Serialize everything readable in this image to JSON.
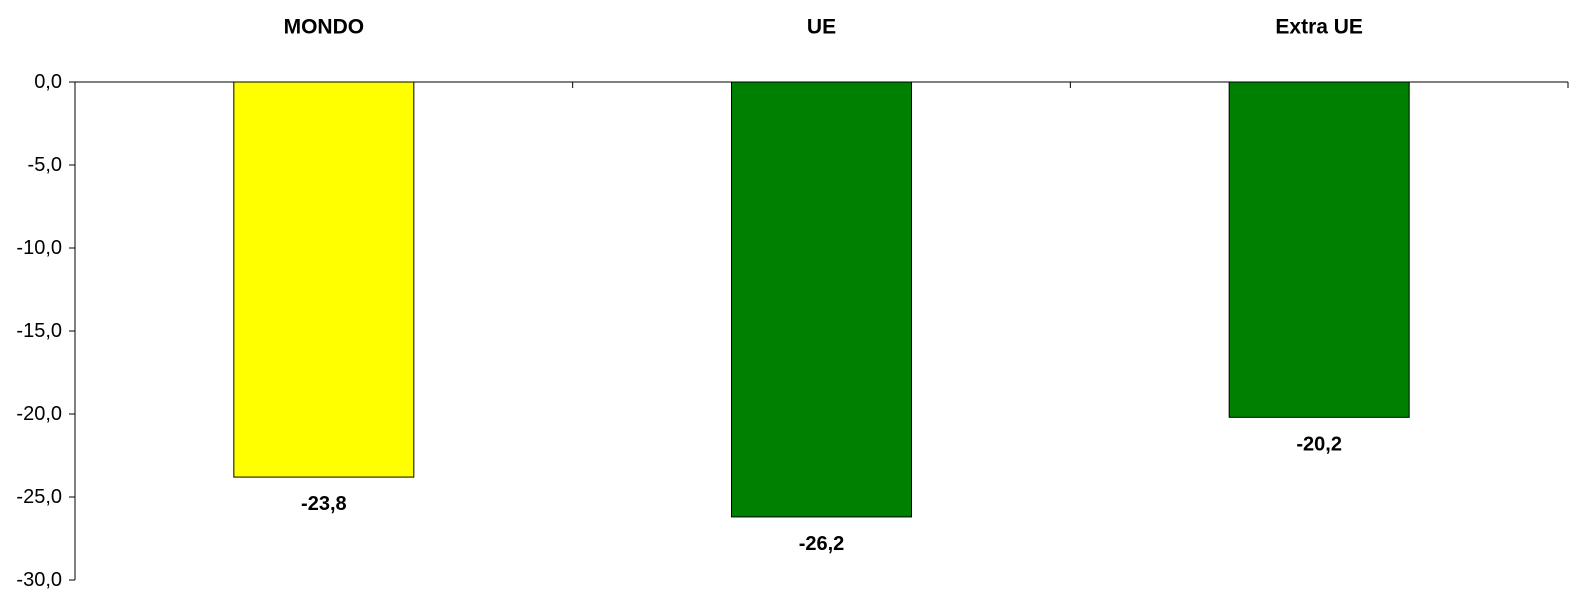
{
  "chart_data": {
    "type": "bar",
    "categories": [
      "MONDO",
      "UE",
      "Extra UE"
    ],
    "values": [
      -23.8,
      -26.2,
      -20.2
    ],
    "value_labels": [
      "-23,8",
      "-26,2",
      "-20,2"
    ],
    "bar_colors": [
      "#FFFF00",
      "#008000",
      "#008000"
    ],
    "ylim": [
      -30,
      0
    ],
    "yticks": [
      0,
      -5,
      -10,
      -15,
      -20,
      -25,
      -30
    ],
    "ytick_labels": [
      "0,0",
      "-5,0",
      "-10,0",
      "-15,0",
      "-20,0",
      "-25,0",
      "-30,0"
    ],
    "category_label_position": "top",
    "title": "",
    "xlabel": "",
    "ylabel": "",
    "grid": false,
    "legend": false
  }
}
